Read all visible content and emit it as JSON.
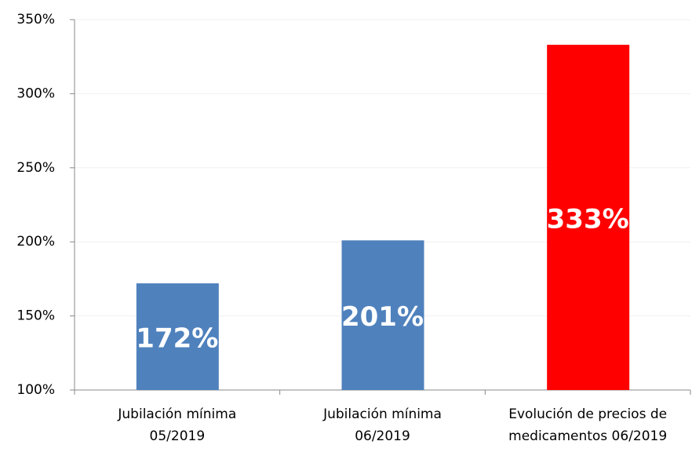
{
  "chart_data": {
    "type": "bar",
    "categories": [
      [
        "Jubilación mínima",
        "05/2019"
      ],
      [
        "Jubilación mínima",
        "06/2019"
      ],
      [
        "Evolución de precios de",
        "medicamentos 06/2019"
      ]
    ],
    "values": [
      172,
      201,
      333
    ],
    "value_labels": [
      "172%",
      "201%",
      "333%"
    ],
    "colors": [
      "#4f81bd",
      "#4f81bd",
      "#ff0000"
    ],
    "ylim": [
      100,
      350
    ],
    "yticks": [
      {
        "value": 100,
        "label": "100%"
      },
      {
        "value": 150,
        "label": "150%"
      },
      {
        "value": 200,
        "label": "200%"
      },
      {
        "value": 250,
        "label": "250%"
      },
      {
        "value": 300,
        "label": "300%"
      },
      {
        "value": 350,
        "label": "350%"
      }
    ],
    "grid": true
  }
}
